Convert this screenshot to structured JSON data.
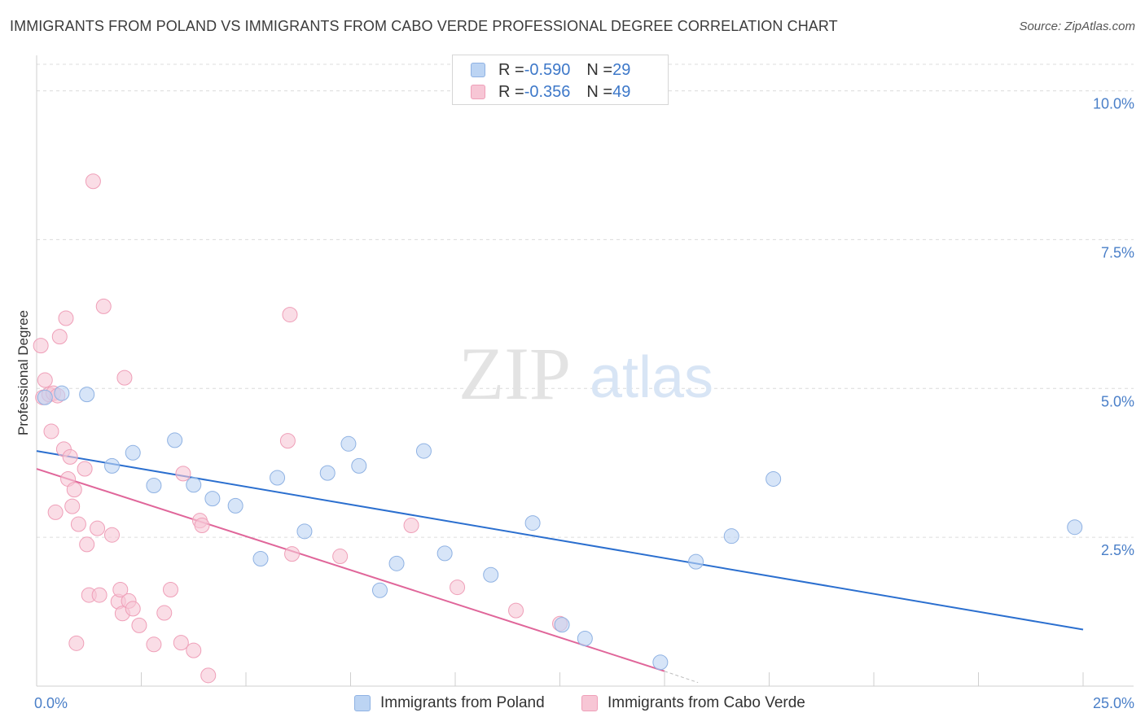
{
  "title": "IMMIGRANTS FROM POLAND VS IMMIGRANTS FROM CABO VERDE PROFESSIONAL DEGREE CORRELATION CHART",
  "source": "Source: ZipAtlas.com",
  "watermark": {
    "zip": "ZIP",
    "atlas": "atlas"
  },
  "legend": {
    "r_label": "R = ",
    "n_label": "N = ",
    "poland": {
      "r": "-0.590",
      "n": "29"
    },
    "cabo": {
      "r": "-0.356",
      "n": "49"
    }
  },
  "colors": {
    "poland_fill": "#bcd4f3",
    "poland_stroke": "#8fb2e3",
    "poland_line": "#2b6fcf",
    "cabo_fill": "#f7c6d5",
    "cabo_stroke": "#ef9fb8",
    "cabo_line": "#e0669a",
    "tick_text": "#4a7fc8",
    "grid": "#dcdcdc"
  },
  "chart_data": {
    "type": "scatter",
    "title": "IMMIGRANTS FROM POLAND VS IMMIGRANTS FROM CABO VERDE PROFESSIONAL DEGREE CORRELATION CHART",
    "xlabel": "",
    "ylabel": "Professional Degree",
    "xlim": [
      0,
      25
    ],
    "ylim": [
      0,
      10.5
    ],
    "x_tick_labels": [
      "0.0%",
      "25.0%"
    ],
    "y_ticks": [
      2.5,
      5.0,
      7.5,
      10.0
    ],
    "y_tick_labels": [
      "2.5%",
      "5.0%",
      "7.5%",
      "10.0%"
    ],
    "series": [
      {
        "name": "Immigrants from Poland",
        "r": -0.59,
        "n": 29,
        "trend": {
          "x0": 0,
          "y0": 3.95,
          "x1": 25,
          "y1": 0.95
        },
        "points": [
          [
            0.2,
            4.85
          ],
          [
            0.6,
            4.92
          ],
          [
            1.2,
            4.9
          ],
          [
            1.8,
            3.7
          ],
          [
            2.3,
            3.92
          ],
          [
            2.8,
            3.37
          ],
          [
            3.3,
            4.13
          ],
          [
            3.75,
            3.38
          ],
          [
            4.2,
            3.15
          ],
          [
            4.75,
            3.03
          ],
          [
            5.35,
            2.14
          ],
          [
            5.75,
            3.5
          ],
          [
            6.4,
            2.6
          ],
          [
            6.95,
            3.58
          ],
          [
            7.45,
            4.07
          ],
          [
            7.7,
            3.7
          ],
          [
            8.2,
            1.61
          ],
          [
            8.6,
            2.06
          ],
          [
            9.25,
            3.95
          ],
          [
            9.75,
            2.23
          ],
          [
            10.85,
            1.87
          ],
          [
            11.85,
            2.74
          ],
          [
            12.55,
            1.03
          ],
          [
            13.1,
            0.8
          ],
          [
            14.9,
            0.4
          ],
          [
            15.75,
            2.09
          ],
          [
            16.6,
            2.52
          ],
          [
            17.6,
            3.48
          ],
          [
            24.8,
            2.67
          ]
        ]
      },
      {
        "name": "Immigrants from Cabo Verde",
        "r": -0.356,
        "n": 49,
        "trend": {
          "x0": 0,
          "y0": 3.65,
          "x1": 15.0,
          "y1": 0.25
        },
        "trend_dash": {
          "x0": 15.0,
          "y0": 0.25,
          "x1": 15.8,
          "y1": 0.06
        },
        "points": [
          [
            0.1,
            5.72
          ],
          [
            0.15,
            4.85
          ],
          [
            0.2,
            5.14
          ],
          [
            0.3,
            4.9
          ],
          [
            0.35,
            4.28
          ],
          [
            0.4,
            4.92
          ],
          [
            0.45,
            2.92
          ],
          [
            0.5,
            4.88
          ],
          [
            0.55,
            5.87
          ],
          [
            0.65,
            3.98
          ],
          [
            0.7,
            6.18
          ],
          [
            0.75,
            3.48
          ],
          [
            0.8,
            3.85
          ],
          [
            0.85,
            3.02
          ],
          [
            0.9,
            3.3
          ],
          [
            0.95,
            0.72
          ],
          [
            1.0,
            2.72
          ],
          [
            1.15,
            3.65
          ],
          [
            1.2,
            2.38
          ],
          [
            1.25,
            1.53
          ],
          [
            1.35,
            8.48
          ],
          [
            1.45,
            2.65
          ],
          [
            1.5,
            1.53
          ],
          [
            1.6,
            6.38
          ],
          [
            1.8,
            2.54
          ],
          [
            1.95,
            1.42
          ],
          [
            2.0,
            1.62
          ],
          [
            2.05,
            1.22
          ],
          [
            2.1,
            5.18
          ],
          [
            2.2,
            1.43
          ],
          [
            2.3,
            1.3
          ],
          [
            2.45,
            1.02
          ],
          [
            2.8,
            0.7
          ],
          [
            3.05,
            1.23
          ],
          [
            3.2,
            1.62
          ],
          [
            3.45,
            0.73
          ],
          [
            3.5,
            3.57
          ],
          [
            3.75,
            0.6
          ],
          [
            3.9,
            2.78
          ],
          [
            3.95,
            2.7
          ],
          [
            4.1,
            0.18
          ],
          [
            6.0,
            4.12
          ],
          [
            6.05,
            6.24
          ],
          [
            6.1,
            2.22
          ],
          [
            7.25,
            2.18
          ],
          [
            8.95,
            2.7
          ],
          [
            10.05,
            1.66
          ],
          [
            11.45,
            1.27
          ],
          [
            12.5,
            1.05
          ]
        ]
      }
    ]
  }
}
